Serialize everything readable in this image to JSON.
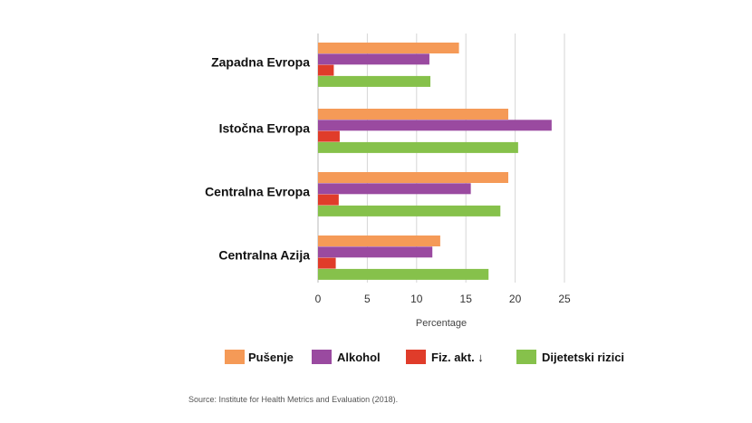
{
  "chart_data": {
    "type": "bar",
    "orientation": "horizontal",
    "categories": [
      "Zapadna Evropa",
      "Istočna Evropa",
      "Centralna Evropa",
      "Centralna Azija"
    ],
    "series": [
      {
        "name": "Pušenje",
        "color": "#f59a57",
        "values": [
          14.3,
          19.3,
          19.3,
          12.4
        ]
      },
      {
        "name": "Alkohol",
        "color": "#9a4aa0",
        "values": [
          11.3,
          23.7,
          15.5,
          11.6
        ]
      },
      {
        "name": "Fiz. akt. ↓",
        "color": "#e03c2a",
        "values": [
          1.6,
          2.2,
          2.1,
          1.8
        ]
      },
      {
        "name": "Dijetetski rizici",
        "color": "#86c14b",
        "values": [
          11.4,
          20.3,
          18.5,
          17.3
        ]
      }
    ],
    "xlim": [
      0,
      25
    ],
    "xticks": [
      0,
      5,
      10,
      15,
      20,
      25
    ],
    "xlabel": "Percentage",
    "ylabel": "",
    "title": "",
    "grid": "vertical",
    "legend_position": "bottom"
  },
  "source": "Source: Institute for Health Metrics and Evaluation (2018)."
}
